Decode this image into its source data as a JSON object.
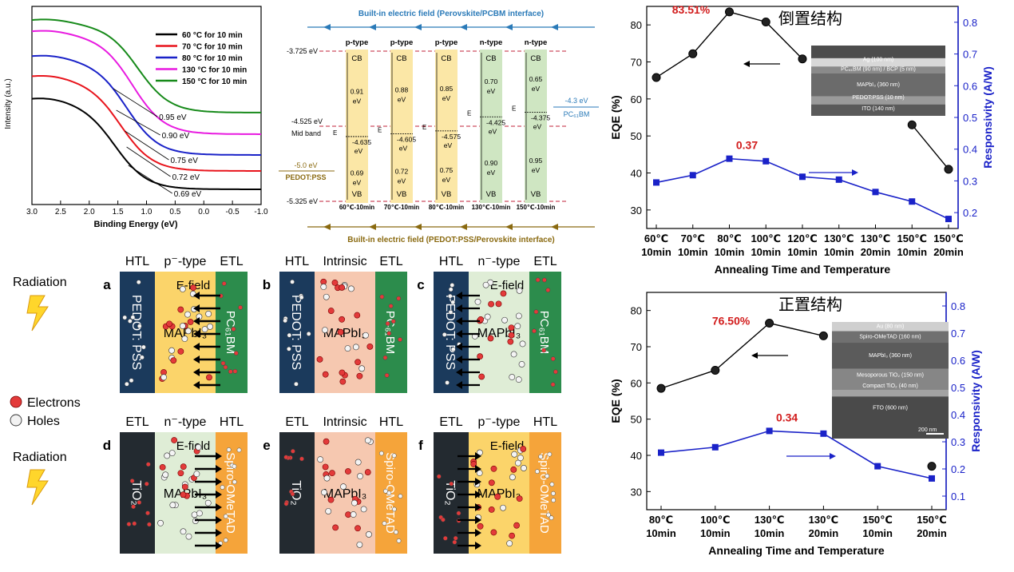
{
  "xps": {
    "ylabel": "Intensity (a.u.)",
    "xlabel": "Binding Energy (eV)",
    "xticks": [
      "3.0",
      "2.5",
      "2.0",
      "1.5",
      "1.0",
      "0.5",
      "0.0",
      "-0.5",
      "-1.0"
    ],
    "legend": [
      {
        "label": "60 °C for 10 min",
        "color": "#000000"
      },
      {
        "label": "70 °C for 10 min",
        "color": "#e8141c"
      },
      {
        "label": "80 °C for 10 min",
        "color": "#1a22c8"
      },
      {
        "label": "130 °C for 10 min",
        "color": "#e81ae0"
      },
      {
        "label": "150 °C for 10 min",
        "color": "#178a1a"
      }
    ],
    "annotations": [
      "0.95 eV",
      "0.90 eV",
      "0.75 eV",
      "0.72 eV",
      "0.69 eV"
    ]
  },
  "band": {
    "top_field": "Built-in electric field (Perovskite/PCBM interface)",
    "bottom_field": "Built-in electric field (PEDOT:PSS/Perovskite interface)",
    "levels": {
      "cb": "-3.725 eV",
      "mid": "-4.525 eV",
      "mid_label": "Mid band",
      "vb": "-5.325 eV"
    },
    "pedot": {
      "value": "-5.0 eV",
      "name": "PEDOT:PSS"
    },
    "pcbm": {
      "value": "-4.3 eV",
      "name": "PC₆₁BM"
    },
    "cb_label": "CB",
    "vb_label": "VB",
    "ef_label": "E",
    "columns": [
      {
        "type": "p-type",
        "up": "0.91",
        "ef": "-4.635",
        "down": "0.69",
        "label": "60℃-10min",
        "color": "#fbe7a6"
      },
      {
        "type": "p-type",
        "up": "0.88",
        "ef": "-4.605",
        "down": "0.72",
        "label": "70℃-10min",
        "color": "#fbe7a6"
      },
      {
        "type": "p-type",
        "up": "0.85",
        "ef": "-4.575",
        "down": "0.75",
        "label": "80℃-10min",
        "color": "#fbe7a6"
      },
      {
        "type": "n-type",
        "up": "0.70",
        "ef": "-4.425",
        "down": "0.90",
        "label": "130℃-10min",
        "color": "#cfe6c2"
      },
      {
        "type": "n-type",
        "up": "0.65",
        "ef": "-4.375",
        "down": "0.95",
        "label": "150℃-10min",
        "color": "#cfe6c2"
      }
    ],
    "ev": "eV"
  },
  "chart_data": [
    {
      "type": "line",
      "title": "倒置结构",
      "categories": [
        [
          "60℃",
          "10min"
        ],
        [
          "70℃",
          "10min"
        ],
        [
          "80℃",
          "10min"
        ],
        [
          "100℃",
          "10min"
        ],
        [
          "120℃",
          "10min"
        ],
        [
          "130℃",
          "10min"
        ],
        [
          "130℃",
          "20min"
        ],
        [
          "150℃",
          "10min"
        ],
        [
          "150℃",
          "20min"
        ]
      ],
      "series": [
        {
          "axis": "left",
          "color": "#000000",
          "values": [
            65.8,
            72.2,
            83.51,
            80.8,
            70.8,
            null,
            null,
            53.0,
            41.0
          ]
        },
        {
          "axis": "right",
          "color": "#1a22c8",
          "values": [
            0.295,
            0.318,
            0.37,
            0.362,
            0.313,
            0.304,
            0.265,
            0.235,
            0.18
          ]
        }
      ],
      "ylabel": "EQE (%)",
      "y2label": "Responsivity (A/W)",
      "xlabel": "Annealing Time and Temperature",
      "ylim": [
        25,
        85
      ],
      "y2lim": [
        0.15,
        0.85
      ],
      "yticks": [
        30,
        40,
        50,
        60,
        70,
        80
      ],
      "y2ticks": [
        0.2,
        0.3,
        0.4,
        0.5,
        0.6,
        0.7,
        0.8
      ],
      "peak_label": "83.51%",
      "peak2_label": "0.37",
      "inset": [
        "Ag (100 nm)",
        "PC₆₁BM (90 nm) / BCP (5 nm)",
        "MAPbI₃ (360 nm)",
        "PEDOT:PSS (10 nm)",
        "ITO (140 nm)"
      ]
    },
    {
      "type": "line",
      "title": "正置结构",
      "categories": [
        [
          "80℃",
          "10min"
        ],
        [
          "100℃",
          "10min"
        ],
        [
          "130℃",
          "10min"
        ],
        [
          "130℃",
          "20min"
        ],
        [
          "150℃",
          "10min"
        ],
        [
          "150℃",
          "20min"
        ]
      ],
      "series": [
        {
          "axis": "left",
          "color": "#000000",
          "values": [
            58.5,
            63.5,
            76.5,
            73.0,
            null,
            37.0
          ]
        },
        {
          "axis": "right",
          "color": "#1a22c8",
          "values": [
            0.26,
            0.28,
            0.34,
            0.33,
            0.21,
            0.165
          ]
        }
      ],
      "ylabel": "EQE (%)",
      "y2label": "Responsivity (A/W)",
      "xlabel": "Annealing Time and Temperature",
      "ylim": [
        25,
        85
      ],
      "y2lim": [
        0.05,
        0.85
      ],
      "yticks": [
        30,
        40,
        50,
        60,
        70,
        80
      ],
      "y2ticks": [
        0.1,
        0.2,
        0.3,
        0.4,
        0.5,
        0.6,
        0.7,
        0.8
      ],
      "peak_label": "76.50%",
      "peak2_label": "0.34",
      "inset": [
        "Au (80 nm)",
        "Spiro-OMeTAD (160 nm)",
        "MAPbI₃ (360 nm)",
        "Mesoporous TiO₂ (150 nm)",
        "Compact TiO₂ (40 nm)",
        "FTO (600 nm)",
        "200 nm"
      ]
    }
  ],
  "devices": {
    "radiation": "Radiation",
    "legend_electrons": "Electrons",
    "legend_holes": "Holes",
    "panels": [
      {
        "letter": "a",
        "h1": "HTL",
        "h2": "p⁻-type",
        "h3": "ETL",
        "left": "PEDOT: PSS",
        "mid": "MAPbI₃",
        "right": "PC₆₁BM",
        "field": "E-field",
        "lc": "#1b3a5c",
        "mc": "#fbd46a",
        "rc": "#2c8c4c",
        "arrow": "left"
      },
      {
        "letter": "b",
        "h1": "HTL",
        "h2": "Intrinsic",
        "h3": "ETL",
        "left": "PEDOT: PSS",
        "mid": "MAPbI₃",
        "right": "PC₆₁BM",
        "field": "",
        "lc": "#1b3a5c",
        "mc": "#f6c8b0",
        "rc": "#2c8c4c",
        "arrow": "none"
      },
      {
        "letter": "c",
        "h1": "HTL",
        "h2": "n⁻-type",
        "h3": "ETL",
        "left": "PEDOT: PSS",
        "mid": "MAPbI₃",
        "right": "PC₆₁BM",
        "field": "E-field",
        "lc": "#1b3a5c",
        "mc": "#dfedd6",
        "rc": "#2c8c4c",
        "arrow": "leftthin"
      },
      {
        "letter": "d",
        "h1": "ETL",
        "h2": "n⁻-type",
        "h3": "HTL",
        "left": "TiO₂",
        "mid": "MAPbI₃",
        "right": "Spiro-OMeTAD",
        "field": "E-field",
        "lc": "#232a30",
        "mc": "#dfedd6",
        "rc": "#f5a43a",
        "arrow": "right"
      },
      {
        "letter": "e",
        "h1": "ETL",
        "h2": "Intrinsic",
        "h3": "HTL",
        "left": "TiO₂",
        "mid": "MAPbI₃",
        "right": "Spiro-OMeTAD",
        "field": "",
        "lc": "#232a30",
        "mc": "#f6c8b0",
        "rc": "#f5a43a",
        "arrow": "none"
      },
      {
        "letter": "f",
        "h1": "ETL",
        "h2": "p⁻-type",
        "h3": "HTL",
        "left": "TiO₂",
        "mid": "MAPbI₃",
        "right": "Spiro-OMeTAD",
        "field": "E-field",
        "lc": "#232a30",
        "mc": "#fbd46a",
        "rc": "#f5a43a",
        "arrow": "rightthin"
      }
    ]
  }
}
